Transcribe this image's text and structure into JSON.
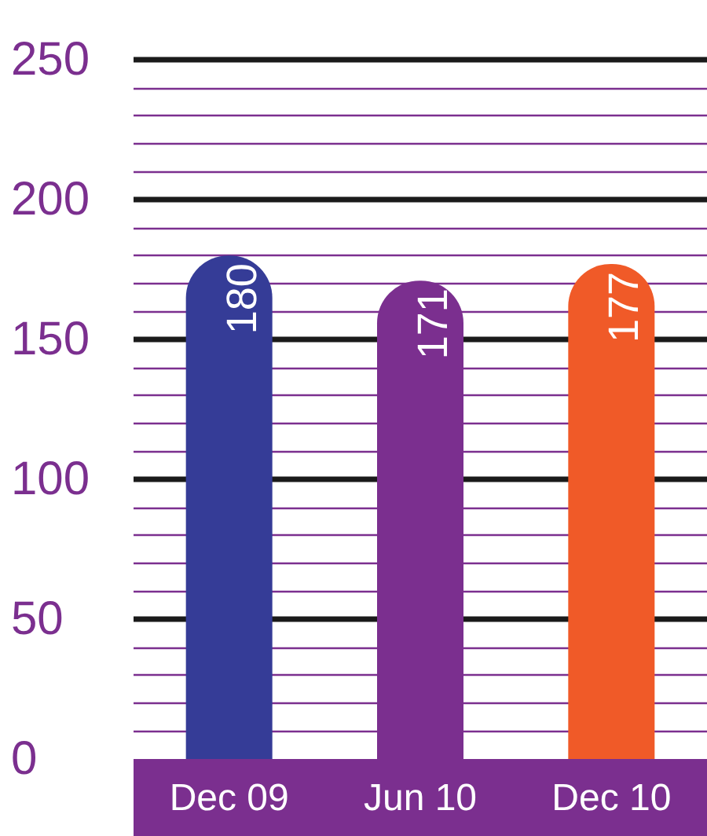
{
  "chart_data": {
    "type": "bar",
    "categories": [
      "Dec 09",
      "Jun 10",
      "Dec 10"
    ],
    "values": [
      180,
      171,
      177
    ],
    "colors": [
      "#353c97",
      "#7b2f8f",
      "#f05a28"
    ],
    "data_labels": true,
    "ylim": [
      0,
      250
    ],
    "yticks": [
      0,
      {
        "value": 10,
        "label": null
      },
      {
        "value": 20,
        "label": null
      },
      {
        "value": 30,
        "label": null
      },
      {
        "value": 40,
        "label": null
      },
      50,
      {
        "value": 60,
        "label": null
      },
      {
        "value": 70,
        "label": null
      },
      {
        "value": 80,
        "label": null
      },
      {
        "value": 90,
        "label": null
      },
      100,
      {
        "value": 110,
        "label": null
      },
      {
        "value": 120,
        "label": null
      },
      {
        "value": 130,
        "label": null
      },
      {
        "value": 140,
        "label": null
      },
      150,
      {
        "value": 160,
        "label": null
      },
      {
        "value": 170,
        "label": null
      },
      {
        "value": 180,
        "label": null
      },
      {
        "value": 190,
        "label": null
      },
      200,
      {
        "value": 210,
        "label": null
      },
      {
        "value": 220,
        "label": null
      },
      {
        "value": 230,
        "label": null
      },
      {
        "value": 240,
        "label": null
      },
      250
    ],
    "grid": "y"
  }
}
